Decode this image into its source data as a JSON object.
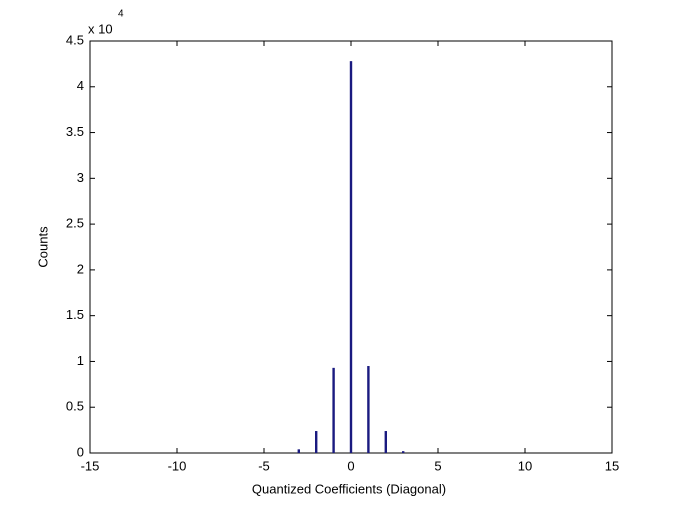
{
  "chart_data": {
    "type": "bar",
    "x": [
      -3,
      -2,
      -1,
      0,
      1,
      2,
      3
    ],
    "values": [
      0.04,
      0.24,
      0.93,
      4.28,
      0.95,
      0.24,
      0.02
    ],
    "color": "#1a1a80",
    "xlabel": "Quantized Coefficients (Diagonal)",
    "ylabel": "Counts",
    "y_multiplier": "x 10",
    "y_multiplier_exponent": "4",
    "xlim": [
      -15,
      15
    ],
    "xticks": [
      -15,
      -10,
      -5,
      0,
      5,
      10,
      15
    ],
    "ylim": [
      0,
      4.5
    ],
    "yticks": [
      0,
      0.5,
      1,
      1.5,
      2,
      2.5,
      3,
      3.5,
      4,
      4.5
    ],
    "grid": false
  }
}
